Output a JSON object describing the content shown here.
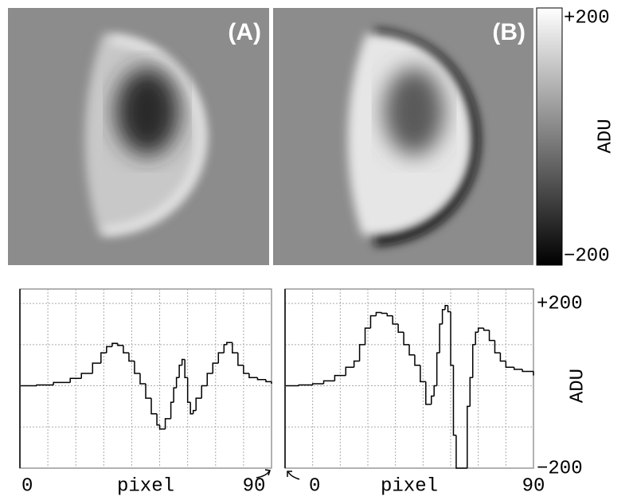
{
  "images": [
    {
      "label": "(A)"
    },
    {
      "label": "(B)"
    }
  ],
  "colorbar": {
    "label": "ADU",
    "lim": [
      -200,
      200
    ],
    "ticks": [
      {
        "value": 200,
        "label": "+200"
      },
      {
        "value": -200,
        "label": "−200"
      }
    ]
  },
  "chart_data": [
    {
      "type": "step",
      "xlabel": "pixel",
      "xlim": [
        0,
        90
      ],
      "ylim": [
        -200,
        235
      ],
      "xticks": [
        0,
        90
      ],
      "xgrid": [
        10,
        20,
        30,
        40,
        50,
        60,
        70,
        80
      ],
      "ygrid": [
        -100,
        0,
        100,
        200
      ],
      "color": "#000000",
      "x": [
        0,
        6,
        12,
        18,
        22,
        26,
        29,
        31,
        33,
        35,
        37,
        39,
        41,
        43,
        45,
        47,
        49,
        50,
        52,
        54,
        55,
        56,
        57,
        58,
        59,
        60,
        61,
        62,
        63,
        65,
        67,
        69,
        71,
        73,
        74,
        76,
        78,
        80,
        82,
        85,
        88,
        90
      ],
      "values": [
        0,
        2,
        8,
        18,
        30,
        55,
        80,
        95,
        103,
        98,
        80,
        60,
        30,
        5,
        -30,
        -68,
        -95,
        -105,
        -80,
        -40,
        -5,
        20,
        50,
        64,
        20,
        -40,
        -68,
        -60,
        -30,
        0,
        30,
        55,
        80,
        100,
        105,
        80,
        50,
        30,
        20,
        15,
        10,
        5
      ]
    },
    {
      "type": "step",
      "xlabel": "pixel",
      "xlim": [
        0,
        90
      ],
      "ylim": [
        -200,
        235
      ],
      "xticks": [
        0,
        90
      ],
      "xgrid": [
        10,
        20,
        30,
        40,
        50,
        60,
        70,
        80
      ],
      "ygrid": [
        -100,
        0,
        100,
        200
      ],
      "color": "#000000",
      "ylabel": "ADU",
      "yticks": [
        {
          "value": 200,
          "label": "+200"
        },
        {
          "value": -200,
          "label": "−200"
        }
      ],
      "x": [
        0,
        5,
        10,
        14,
        18,
        22,
        25,
        27,
        29,
        31,
        33,
        35,
        37,
        39,
        41,
        43,
        45,
        47,
        49,
        51,
        53,
        54,
        55,
        56,
        57,
        58,
        59,
        60,
        61,
        62,
        63,
        64,
        65,
        66,
        67,
        68,
        69,
        70,
        72,
        74,
        76,
        78,
        80,
        83,
        86,
        90
      ],
      "values": [
        0,
        2,
        5,
        12,
        25,
        45,
        60,
        100,
        140,
        170,
        178,
        176,
        170,
        150,
        130,
        100,
        75,
        50,
        10,
        -45,
        -25,
        0,
        80,
        150,
        185,
        195,
        180,
        50,
        -120,
        -200,
        -200,
        -200,
        -200,
        -50,
        20,
        100,
        130,
        140,
        135,
        110,
        80,
        60,
        45,
        40,
        35,
        25
      ]
    }
  ]
}
